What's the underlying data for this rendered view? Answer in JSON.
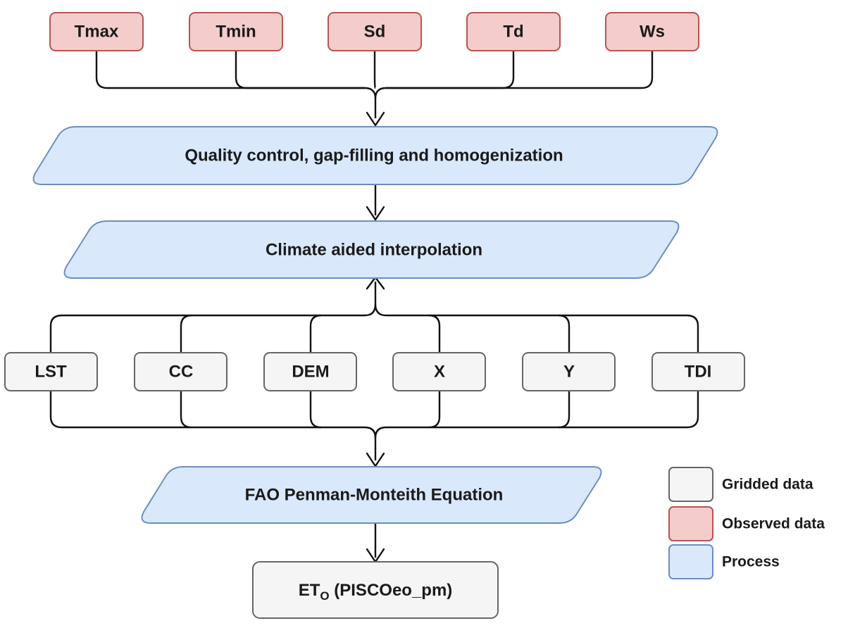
{
  "colors": {
    "observed_fill": "#f4cccc",
    "observed_stroke": "#b85450",
    "gridded_fill": "#f5f5f5",
    "gridded_stroke": "#666666",
    "process_fill": "#dae8fc",
    "process_stroke": "#6c8ebf",
    "line": "#111111"
  },
  "observed_inputs": [
    "Tmax",
    "Tmin",
    "Sd",
    "Td",
    "Ws"
  ],
  "gridded_inputs": [
    "LST",
    "CC",
    "DEM",
    "X",
    "Y",
    "TDI"
  ],
  "processes": {
    "quality_control": "Quality control, gap-filling and homogenization",
    "interpolation": "Climate aided interpolation",
    "penman_monteith": "FAO Penman-Monteith Equation"
  },
  "output": {
    "main": "ET",
    "subscript": "O",
    "rest": " (PISCOeo_pm)"
  },
  "legend": {
    "gridded": "Gridded data",
    "observed": "Observed data",
    "process": "Process"
  }
}
